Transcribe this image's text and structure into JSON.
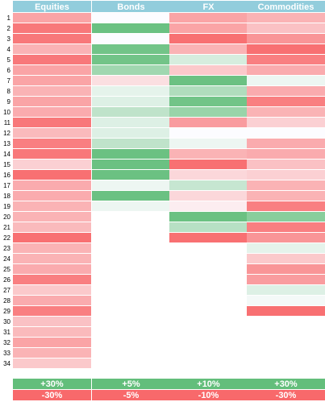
{
  "chart_data": {
    "type": "heatmap",
    "columns": [
      "Equities",
      "Bonds",
      "FX",
      "Commodities"
    ],
    "rows": [
      "1",
      "2",
      "3",
      "4",
      "5",
      "6",
      "7",
      "8",
      "9",
      "10",
      "11",
      "12",
      "13",
      "14",
      "15",
      "16",
      "17",
      "18",
      "19",
      "20",
      "21",
      "22",
      "23",
      "24",
      "25",
      "26",
      "27",
      "28",
      "29",
      "30",
      "31",
      "32",
      "33",
      "34"
    ],
    "scale": {
      "max_label": "+30%",
      "min_label": "-30%",
      "positive_color": "#63be7b",
      "negative_color": "#f8696b"
    },
    "column_scales": [
      {
        "max_label": "+30%",
        "min_label": "-30%"
      },
      {
        "max_label": "+5%",
        "min_label": "-5%"
      },
      {
        "max_label": "+10%",
        "min_label": "-10%"
      },
      {
        "max_label": "+30%",
        "min_label": "-30%"
      }
    ],
    "values_normalized": [
      [
        -0.6,
        0.0,
        -0.6,
        -0.5
      ],
      [
        -0.9,
        0.95,
        -0.6,
        -0.4
      ],
      [
        -0.9,
        0.0,
        -0.95,
        -0.7
      ],
      [
        -0.5,
        0.9,
        -0.5,
        -0.95
      ],
      [
        -0.9,
        0.9,
        0.25,
        -0.85
      ],
      [
        -0.6,
        0.6,
        -0.35,
        -0.55
      ],
      [
        -0.6,
        -0.2,
        0.95,
        0.1
      ],
      [
        -0.5,
        0.15,
        0.5,
        -0.55
      ],
      [
        -0.6,
        0.2,
        0.9,
        -0.85
      ],
      [
        -0.55,
        0.4,
        0.65,
        -0.5
      ],
      [
        -0.9,
        0.2,
        -0.65,
        -0.3
      ],
      [
        -0.45,
        0.2,
        0.0,
        0.0
      ],
      [
        -0.85,
        0.4,
        0.1,
        -0.55
      ],
      [
        -0.9,
        0.95,
        -0.5,
        -0.55
      ],
      [
        -0.3,
        0.95,
        -0.95,
        -0.4
      ],
      [
        -0.95,
        0.95,
        -0.25,
        -0.3
      ],
      [
        -0.55,
        0.1,
        0.35,
        -0.5
      ],
      [
        -0.55,
        0.95,
        -0.25,
        -0.5
      ],
      [
        -0.5,
        0.1,
        -0.1,
        -0.85
      ],
      [
        -0.5,
        null,
        0.95,
        0.75
      ],
      [
        -0.45,
        null,
        0.45,
        -0.85
      ],
      [
        -0.95,
        null,
        -0.95,
        -0.7
      ],
      [
        -0.5,
        null,
        null,
        0.15
      ],
      [
        -0.5,
        null,
        null,
        -0.35
      ],
      [
        -0.55,
        null,
        null,
        -0.7
      ],
      [
        -0.85,
        null,
        null,
        -0.65
      ],
      [
        -0.35,
        null,
        null,
        0.2
      ],
      [
        -0.55,
        null,
        null,
        0.05
      ],
      [
        -0.85,
        null,
        null,
        -0.95
      ],
      [
        -0.4,
        null,
        null,
        null
      ],
      [
        -0.45,
        null,
        null,
        null
      ],
      [
        -0.6,
        null,
        null,
        null
      ],
      [
        -0.5,
        null,
        null,
        null
      ],
      [
        -0.35,
        null,
        null,
        null
      ]
    ]
  },
  "colors": {
    "header_bg": "#92cddc",
    "header_text": "#ffffff",
    "row_label_text": "#000000",
    "empty_cell": "#ffffff",
    "neutral": "#fcfcff"
  }
}
